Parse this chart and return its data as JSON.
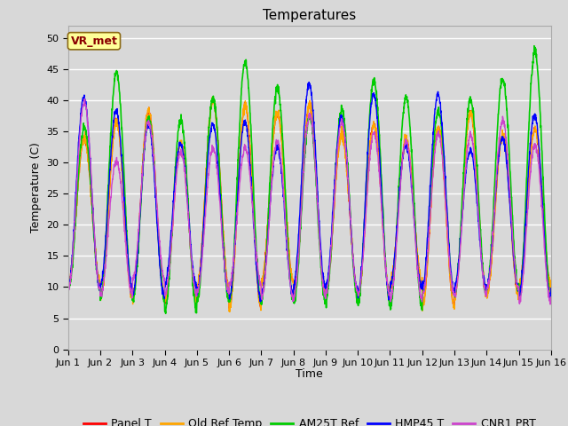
{
  "title": "Temperatures",
  "xlabel": "Time",
  "ylabel": "Temperature (C)",
  "xlim_days": 15,
  "ylim": [
    0,
    52
  ],
  "yticks": [
    0,
    5,
    10,
    15,
    20,
    25,
    30,
    35,
    40,
    45,
    50
  ],
  "annotation_text": "VR_met",
  "annotation_color": "#8B0000",
  "annotation_bg": "#FFFF99",
  "annotation_border": "#8B6914",
  "series_names": [
    "Panel T",
    "Old Ref Temp",
    "AM25T Ref",
    "HMP45 T",
    "CNR1 PRT"
  ],
  "series_colors": [
    "#FF0000",
    "#FFA500",
    "#00CC00",
    "#0000FF",
    "#CC44CC"
  ],
  "series_lw": [
    1.0,
    1.0,
    1.2,
    1.0,
    1.0
  ],
  "bg_color": "#D8D8D8",
  "axes_bg_color": "#D8D8D8",
  "grid_color": "#FFFFFF",
  "title_fontsize": 11,
  "label_fontsize": 9,
  "tick_fontsize": 8,
  "legend_fontsize": 9,
  "n_points": 2160
}
